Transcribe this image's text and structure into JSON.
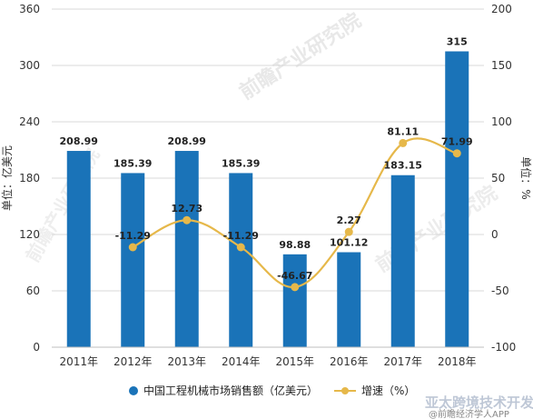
{
  "chart_data": {
    "type": "bar",
    "categories": [
      "2011年",
      "2012年",
      "2013年",
      "2014年",
      "2015年",
      "2016年",
      "2017年",
      "2018年"
    ],
    "series": [
      {
        "name": "中国工程机械市场销售额（亿美元）",
        "type": "bar",
        "axis": "left",
        "values": [
          208.99,
          185.39,
          208.99,
          185.39,
          98.88,
          101.12,
          183.15,
          315
        ],
        "labels": [
          "208.99",
          "185.39",
          "208.99",
          "185.39",
          "98.88",
          "101.12",
          "183.15",
          "315"
        ],
        "color": "#1a73b8"
      },
      {
        "name": "增速（%）",
        "type": "line",
        "axis": "right",
        "x": [
          "2012年",
          "2013年",
          "2014年",
          "2015年",
          "2016年",
          "2017年",
          "2018年"
        ],
        "values": [
          -11.29,
          12.73,
          -11.29,
          -46.67,
          2.27,
          81.11,
          71.99
        ],
        "labels": [
          "-11.29",
          "12.73",
          "-11.29",
          "-46.67",
          "2.27",
          "81.11",
          "71.99"
        ],
        "color": "#e6b84a"
      }
    ],
    "ylabel": "单位：亿美元",
    "ylim": [
      0,
      360
    ],
    "yticks": [
      "0",
      "60",
      "120",
      "180",
      "240",
      "300",
      "360"
    ],
    "y2label": "单位：%",
    "y2lim": [
      -100,
      200
    ],
    "y2ticks": [
      "-100",
      "-50",
      "0",
      "50",
      "100",
      "150",
      "200"
    ],
    "grid": true,
    "legend": "bottom"
  },
  "watermark": {
    "text": "前瞻产业研究院",
    "footer": "@前瞻经济学人APP",
    "brand": "亚太跨境技术开发网"
  }
}
